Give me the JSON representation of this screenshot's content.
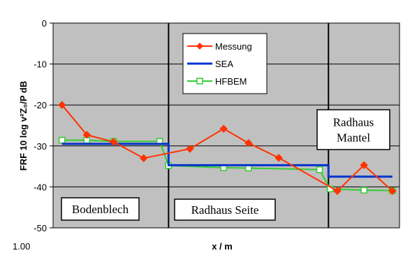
{
  "chart_data": {
    "type": "line",
    "xlabel": "x / m",
    "ylabel": "FRF 10 log v²Z₀/P dB",
    "xlim": [
      0,
      19.5
    ],
    "ylim": [
      -50,
      0
    ],
    "yticks": [
      0,
      -10,
      -20,
      -30,
      -40,
      -50
    ],
    "ytick_labels": [
      "0",
      "-10",
      "-20",
      "-30",
      "-40",
      "-50"
    ],
    "xtick_labels": [
      "1.00"
    ],
    "grid": "horizontal",
    "legend_position": "top-center",
    "region_boundaries": [
      6.5,
      15.5
    ],
    "region_labels": [
      "Bodenblech",
      "Radhaus Seite",
      "Radhaus Mantel"
    ],
    "region_label_lines": [
      [
        "Bodenblech"
      ],
      [
        "Radhaus Seite"
      ],
      [
        "Radhaus",
        "Mantel"
      ]
    ],
    "colors": {
      "plot_background": "#c0c0c0",
      "gridline": "#000000",
      "messung": "#ff3300",
      "sea": "#0033cc",
      "hfbem": "#33cc33"
    },
    "series": [
      {
        "name": "Messung",
        "marker": "diamond",
        "points": [
          [
            0.5,
            -20
          ],
          [
            1.9,
            -27.3
          ],
          [
            3.4,
            -29
          ],
          [
            5.1,
            -33
          ],
          [
            7.7,
            -30.7
          ],
          [
            9.6,
            -25.8
          ],
          [
            11.0,
            -29.3
          ],
          [
            12.7,
            -32.9
          ],
          [
            16.0,
            -41
          ],
          [
            17.5,
            -34.7
          ],
          [
            19.1,
            -41
          ]
        ]
      },
      {
        "name": "SEA",
        "marker": "none",
        "points": [
          [
            0.5,
            -29.5
          ],
          [
            6.5,
            -29.5
          ],
          [
            6.5,
            -34.7
          ],
          [
            15.5,
            -34.7
          ],
          [
            15.5,
            -37.5
          ],
          [
            19.1,
            -37.5
          ]
        ]
      },
      {
        "name": "HFBEM",
        "marker": "square",
        "points": [
          [
            0.5,
            -28.6
          ],
          [
            1.9,
            -28.6
          ],
          [
            3.4,
            -28.9
          ],
          [
            6.0,
            -28.9
          ],
          [
            6.5,
            -34.8
          ],
          [
            9.6,
            -35.3
          ],
          [
            11.0,
            -35.4
          ],
          [
            15.0,
            -35.8
          ],
          [
            15.6,
            -40.5
          ],
          [
            17.5,
            -40.8
          ],
          [
            19.1,
            -40.9
          ]
        ]
      }
    ]
  }
}
